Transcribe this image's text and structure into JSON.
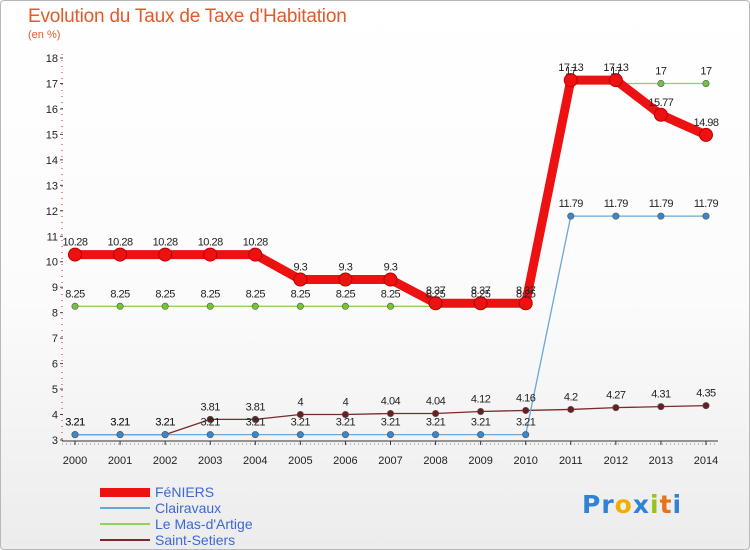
{
  "header": {
    "title": "Evolution du Taux de Taxe d'Habitation",
    "unit": "(en %)"
  },
  "logo": {
    "parts": [
      {
        "text": "Pr",
        "color": "#2f82d6"
      },
      {
        "text": "o",
        "color": "#f0b000"
      },
      {
        "text": "x",
        "color": "#2f82d6"
      },
      {
        "text": "i",
        "color": "#9ac21c"
      },
      {
        "text": "t",
        "color": "#e8741a"
      },
      {
        "text": "i",
        "color": "#2f82d6"
      }
    ]
  },
  "chart_data": {
    "type": "line",
    "title": "Evolution du Taux de Taxe d'Habitation",
    "ylabel": "(en %)",
    "xlabel": "",
    "ylim": [
      3,
      18
    ],
    "yticks": [
      3,
      4,
      5,
      6,
      7,
      8,
      9,
      10,
      11,
      12,
      13,
      14,
      15,
      16,
      17,
      18
    ],
    "grid": false,
    "legend_position": "bottom-left",
    "x": [
      "2000",
      "2001",
      "2002",
      "2003",
      "2004",
      "2005",
      "2006",
      "2007",
      "2008",
      "2009",
      "2010",
      "2011",
      "2012",
      "2013",
      "2014"
    ],
    "series": [
      {
        "name": "Saint-Setiers",
        "color": "#7a2a2a",
        "marker": "#6a1f1f",
        "labels": [
          "3.21",
          "3.21",
          "3.21",
          "3.81",
          "3.81",
          "4",
          "4",
          "4.04",
          "4.04",
          "4.12",
          "4.16",
          "4.2",
          "4.27",
          "4.31",
          "4.35"
        ],
        "values": [
          3.21,
          3.21,
          3.21,
          3.81,
          3.81,
          4.0,
          4.0,
          4.04,
          4.04,
          4.12,
          4.16,
          4.2,
          4.27,
          4.31,
          4.35
        ]
      },
      {
        "name": "Clairavaux",
        "color": "#6aa6d8",
        "marker": "#3c86cc",
        "labels": [
          "3.21",
          "3.21",
          "3.21",
          "3.21",
          "3.21",
          "3.21",
          "3.21",
          "3.21",
          "3.21",
          "3.21",
          "3.21",
          "11.79",
          "11.79",
          "11.79",
          "11.79"
        ],
        "values": [
          3.21,
          3.21,
          3.21,
          3.21,
          3.21,
          3.21,
          3.21,
          3.21,
          3.21,
          3.21,
          3.21,
          11.79,
          11.79,
          11.79,
          11.79
        ]
      },
      {
        "name": "Le Mas-d'Artige",
        "color": "#8fd35a",
        "marker": "#74c23d",
        "labels": [
          "8.25",
          "8.25",
          "8.25",
          "8.25",
          "8.25",
          "8.25",
          "8.25",
          "8.25",
          "8.25",
          "8.25",
          "8.25",
          "17",
          "17",
          "17",
          "17"
        ],
        "values": [
          8.25,
          8.25,
          8.25,
          8.25,
          8.25,
          8.25,
          8.25,
          8.25,
          8.25,
          8.25,
          8.25,
          17.0,
          17.0,
          17.0,
          17.0
        ]
      },
      {
        "name": "FéNIERS",
        "color": "#ee1111",
        "marker": "#ee1111",
        "labels": [
          "10.28",
          "10.28",
          "10.28",
          "10.28",
          "10.28",
          "9.3",
          "9.3",
          "9.3",
          "8.37",
          "8.37",
          "8.37",
          "17.13",
          "17.13",
          "15.77",
          "14.98"
        ],
        "values": [
          10.28,
          10.28,
          10.28,
          10.28,
          10.28,
          9.3,
          9.3,
          9.3,
          8.37,
          8.37,
          8.37,
          17.13,
          17.13,
          15.77,
          14.98
        ]
      }
    ]
  }
}
